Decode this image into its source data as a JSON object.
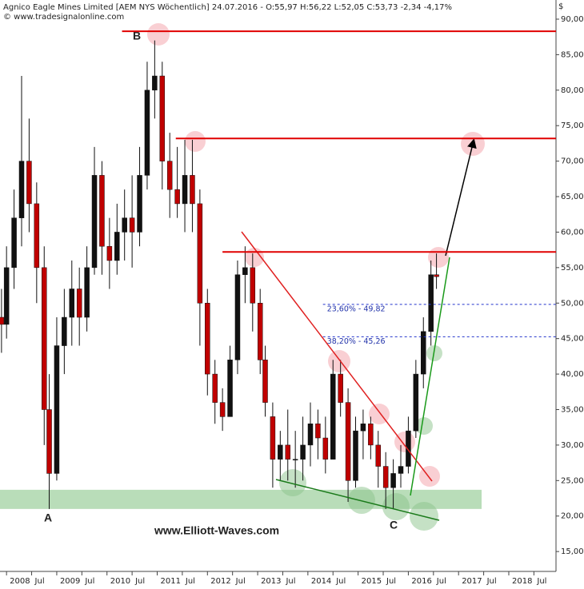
{
  "chart_data": {
    "type": "candlestick",
    "title": "Agnico Eagle Mines Limited [AEM NYS  Wöchentlich] 24.07.2016 - O:55,97 H:56,22 L:52,05 C:53,73 -2,34 -4,17%",
    "subtitle": "© www.tradesignalonline.com",
    "currency": "$",
    "annotations": {
      "a": "A",
      "b": "B",
      "c": "C",
      "site": "www.Elliott-Waves.com"
    },
    "x": [
      2007.9,
      2008.0,
      2008.15,
      2008.3,
      2008.45,
      2008.6,
      2008.75,
      2008.85,
      2009.0,
      2009.15,
      2009.3,
      2009.45,
      2009.6,
      2009.75,
      2009.9,
      2010.05,
      2010.2,
      2010.35,
      2010.5,
      2010.65,
      2010.8,
      2010.95,
      2011.1,
      2011.25,
      2011.4,
      2011.55,
      2011.7,
      2011.85,
      2012.0,
      2012.15,
      2012.3,
      2012.45,
      2012.6,
      2012.75,
      2012.9,
      2013.05,
      2013.15,
      2013.3,
      2013.45,
      2013.6,
      2013.75,
      2013.9,
      2014.05,
      2014.2,
      2014.35,
      2014.5,
      2014.65,
      2014.8,
      2014.95,
      2015.1,
      2015.25,
      2015.4,
      2015.55,
      2015.7,
      2015.85,
      2016.0,
      2016.15,
      2016.3,
      2016.45,
      2016.56
    ],
    "open": [
      48,
      47,
      55,
      62,
      70,
      64,
      55,
      35,
      26,
      44,
      48,
      52,
      48,
      55,
      68,
      58,
      56,
      60,
      62,
      60,
      68,
      80,
      82,
      70,
      66,
      64,
      68,
      64,
      50,
      40,
      36,
      34,
      42,
      54,
      55,
      50,
      42,
      34,
      28,
      30,
      28,
      28,
      30,
      33,
      31,
      28,
      40,
      36,
      25,
      32,
      33,
      30,
      27,
      24,
      26,
      27,
      32,
      40,
      46,
      54
    ],
    "high": [
      52,
      58,
      66,
      82,
      76,
      67,
      58,
      40,
      48,
      52,
      56,
      55,
      58,
      72,
      70,
      62,
      64,
      66,
      68,
      72,
      84,
      87,
      84,
      74,
      72,
      73,
      73,
      66,
      52,
      42,
      38,
      44,
      56,
      58,
      57,
      52,
      44,
      36,
      32,
      35,
      32,
      34,
      36,
      35,
      34,
      42,
      42,
      38,
      34,
      35,
      34,
      32,
      29,
      28,
      30,
      34,
      42,
      48,
      56,
      57
    ],
    "low": [
      43,
      45,
      52,
      58,
      60,
      50,
      30,
      21,
      25,
      40,
      44,
      44,
      46,
      54,
      54,
      52,
      54,
      56,
      55,
      58,
      66,
      76,
      66,
      62,
      62,
      60,
      60,
      44,
      37,
      33,
      32,
      34,
      40,
      50,
      46,
      40,
      34,
      24,
      25,
      25,
      24,
      25,
      27,
      28,
      26,
      28,
      34,
      22,
      24,
      28,
      28,
      24,
      21,
      21,
      24,
      26,
      31,
      38,
      44,
      52
    ],
    "close": [
      47,
      55,
      62,
      70,
      64,
      55,
      35,
      26,
      44,
      48,
      52,
      48,
      55,
      68,
      58,
      56,
      60,
      62,
      60,
      68,
      80,
      82,
      70,
      66,
      64,
      68,
      64,
      50,
      40,
      36,
      34,
      42,
      54,
      55,
      50,
      42,
      36,
      28,
      30,
      28,
      28,
      30,
      33,
      31,
      28,
      40,
      36,
      25,
      32,
      33,
      30,
      27,
      24,
      26,
      27,
      32,
      40,
      46,
      54,
      53.73
    ],
    "up_color": "#111111",
    "down_color": "#c00000",
    "support_band": [
      21,
      23.7
    ],
    "resistance_levels": [
      {
        "value": 88.3,
        "from": 2010.3
      },
      {
        "value": 73.2,
        "from": 2011.37
      },
      {
        "value": 57.2,
        "from": 2012.3
      }
    ],
    "fib_levels": [
      {
        "value": 49.82,
        "label": "23,60% - 49,82",
        "from": 2014.3
      },
      {
        "value": 45.26,
        "label": "38,20% - 45,26",
        "from": 2014.3
      }
    ],
    "xlim": [
      2007.87,
      2018.94
    ],
    "xticks": [
      {
        "value": 2008,
        "label": "2008"
      },
      {
        "value": 2008.5,
        "label": "Jul"
      },
      {
        "value": 2009,
        "label": "2009"
      },
      {
        "value": 2009.5,
        "label": "Jul"
      },
      {
        "value": 2010,
        "label": "2010"
      },
      {
        "value": 2010.5,
        "label": "Jul"
      },
      {
        "value": 2011,
        "label": "2011"
      },
      {
        "value": 2011.5,
        "label": "Jul"
      },
      {
        "value": 2012,
        "label": "2012"
      },
      {
        "value": 2012.5,
        "label": "Jul"
      },
      {
        "value": 2013,
        "label": "2013"
      },
      {
        "value": 2013.5,
        "label": "Jul"
      },
      {
        "value": 2014,
        "label": "2014"
      },
      {
        "value": 2014.5,
        "label": "Jul"
      },
      {
        "value": 2015,
        "label": "2015"
      },
      {
        "value": 2015.5,
        "label": "Jul"
      },
      {
        "value": 2016,
        "label": "2016"
      },
      {
        "value": 2016.5,
        "label": "Jul"
      },
      {
        "value": 2017,
        "label": "2017"
      },
      {
        "value": 2017.5,
        "label": "Jul"
      },
      {
        "value": 2018,
        "label": "2018"
      },
      {
        "value": 2018.5,
        "label": "Jul"
      }
    ],
    "ylim": [
      12.2,
      92.7
    ],
    "yticks": [
      {
        "value": 15,
        "label": "15,00"
      },
      {
        "value": 20,
        "label": "20,00"
      },
      {
        "value": 25,
        "label": "25,00"
      },
      {
        "value": 30,
        "label": "30,00"
      },
      {
        "value": 35,
        "label": "35,00"
      },
      {
        "value": 40,
        "label": "40,00"
      },
      {
        "value": 45,
        "label": "45,00"
      },
      {
        "value": 50,
        "label": "50,00"
      },
      {
        "value": 55,
        "label": "55,00"
      },
      {
        "value": 60,
        "label": "60,00"
      },
      {
        "value": 65,
        "label": "65,00"
      },
      {
        "value": 70,
        "label": "70,00"
      },
      {
        "value": 75,
        "label": "75,00"
      },
      {
        "value": 80,
        "label": "80,00"
      },
      {
        "value": 85,
        "label": "85,00"
      },
      {
        "value": 90,
        "label": "90,00"
      }
    ]
  }
}
